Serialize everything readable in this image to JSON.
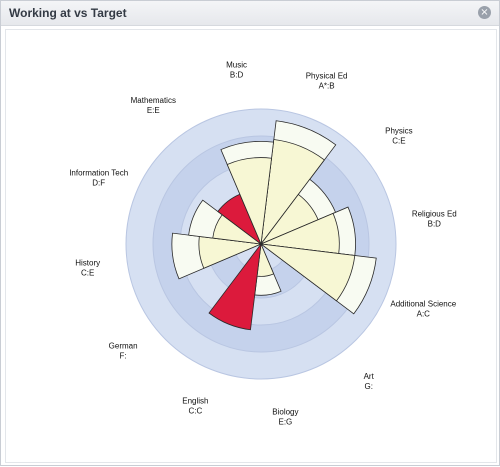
{
  "window": {
    "title": "Working at vs Target",
    "close_icon": "close-icon"
  },
  "chart_data": {
    "type": "polar-area",
    "description_note": "",
    "rings": 4,
    "colors": {
      "target": "#f8fbf2",
      "working_ok": "#f7f7d4",
      "working_below": "#dc1a3c",
      "ring_light": "#d6e0f2",
      "ring_dark": "#c5d2ec",
      "ring_line": "#b9c6e2"
    },
    "subjects": [
      {
        "name": "Physical Ed",
        "grades": "A*:B",
        "working": 3.9,
        "target": 4.6,
        "status": "ok"
      },
      {
        "name": "Physics",
        "grades": "C:E",
        "working": 2.3,
        "target": 3.0,
        "status": "ok"
      },
      {
        "name": "Religious Ed",
        "grades": "B:D",
        "working": 2.9,
        "target": 3.5,
        "status": "ok"
      },
      {
        "name": "Additional Science",
        "grades": "A:C",
        "working": 3.5,
        "target": 4.3,
        "status": "ok"
      },
      {
        "name": "Art",
        "grades": "G:",
        "working": 0,
        "target": 0,
        "status": "none"
      },
      {
        "name": "Biology",
        "grades": "E:G",
        "working": 1.2,
        "target": 1.9,
        "status": "ok"
      },
      {
        "name": "English",
        "grades": "C:C",
        "working": 3.2,
        "target": 3.2,
        "status": "below"
      },
      {
        "name": "German",
        "grades": "F:",
        "working": 0,
        "target": 0,
        "status": "none"
      },
      {
        "name": "History",
        "grades": "C:E",
        "working": 2.3,
        "target": 3.3,
        "status": "ok"
      },
      {
        "name": "Information Tech",
        "grades": "D:F",
        "working": 1.8,
        "target": 2.7,
        "status": "ok"
      },
      {
        "name": "Mathematics",
        "grades": "E:E",
        "working": 2.0,
        "target": 2.0,
        "status": "below"
      },
      {
        "name": "Music",
        "grades": "B:D",
        "working": 3.2,
        "target": 3.8,
        "status": "ok"
      }
    ]
  }
}
